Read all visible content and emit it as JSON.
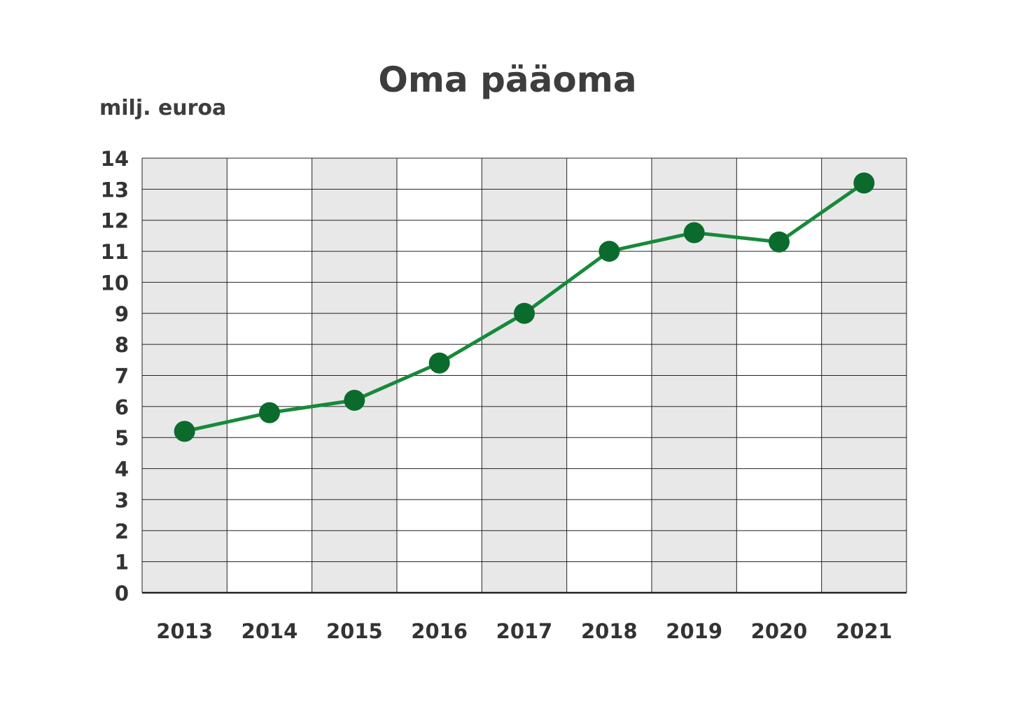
{
  "chart_data": {
    "type": "line",
    "title": "Oma pääoma",
    "ylabel": "milj. euroa",
    "xlabel": "",
    "categories": [
      "2013",
      "2014",
      "2015",
      "2016",
      "2017",
      "2018",
      "2019",
      "2020",
      "2021"
    ],
    "series": [
      {
        "values": [
          5.2,
          5.8,
          6.2,
          7.4,
          9.0,
          11.0,
          11.6,
          11.3,
          13.2
        ]
      }
    ],
    "ylim": [
      0,
      14
    ],
    "yticks": [
      "0",
      "1",
      "2",
      "3",
      "4",
      "5",
      "6",
      "7",
      "8",
      "9",
      "10",
      "11",
      "12",
      "13",
      "14"
    ],
    "grid": true,
    "legend": "none",
    "colors": {
      "line": "#168a3a",
      "marker": "#0b6b2c",
      "band_shaded": "#e8e8e8",
      "band_plain": "#ffffff",
      "grid": "#222222",
      "text": "#3d3d3d"
    }
  }
}
